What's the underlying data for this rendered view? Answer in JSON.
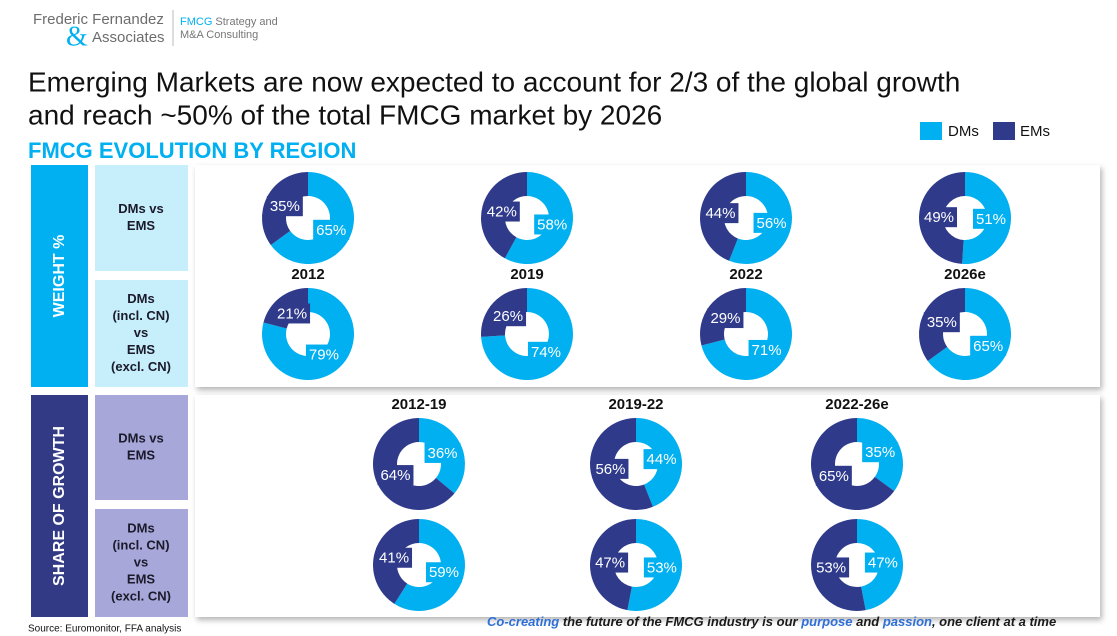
{
  "logo": {
    "name_line1": "Frederic Fernandez",
    "ampersand": "&",
    "name_line2": "Associates",
    "tag_brand": "FMCG",
    "tag_line1": "Strategy and",
    "tag_line2": "M&A Consulting"
  },
  "title_lines": [
    "Emerging Markets are now expected to account for 2/3 of the global growth",
    "and reach ~50% of the total FMCG market by 2026"
  ],
  "subtitle": "FMCG EVOLUTION BY REGION",
  "panels": [
    {
      "label": "WEIGHT %",
      "periods": [
        "2012",
        "2019",
        "2022",
        "2026e"
      ],
      "rows": [
        [
          "DMs vs",
          "EMS"
        ],
        [
          "DMs",
          "(incl. CN)",
          "vs",
          "EMS",
          "(excl. CN)"
        ]
      ]
    },
    {
      "label": "SHARE OF GROWTH",
      "periods": [
        "2012-19",
        "2019-22",
        "2022-26e"
      ],
      "rows": [
        [
          "DMs vs",
          "EMS"
        ],
        [
          "DMs",
          "(incl. CN)",
          "vs",
          "EMS",
          "(excl. CN)"
        ]
      ]
    }
  ],
  "chart_data": [
    {
      "type": "donut",
      "categories": [
        "DMs",
        "EMs"
      ],
      "colors": [
        "#00B0F0",
        "#2F3A8B"
      ],
      "values": [
        65,
        35
      ],
      "value_labels": [
        "65%",
        "35%"
      ]
    },
    {
      "type": "donut",
      "categories": [
        "DMs",
        "EMs"
      ],
      "colors": [
        "#00B0F0",
        "#2F3A8B"
      ],
      "values": [
        58,
        42
      ],
      "value_labels": [
        "58%",
        "42%"
      ]
    },
    {
      "type": "donut",
      "categories": [
        "DMs",
        "EMs"
      ],
      "colors": [
        "#00B0F0",
        "#2F3A8B"
      ],
      "values": [
        56,
        44
      ],
      "value_labels": [
        "56%",
        "44%"
      ]
    },
    {
      "type": "donut",
      "categories": [
        "DMs",
        "EMs"
      ],
      "colors": [
        "#00B0F0",
        "#2F3A8B"
      ],
      "values": [
        51,
        49
      ],
      "value_labels": [
        "51%",
        "49%"
      ]
    },
    {
      "type": "donut",
      "categories": [
        "DMs",
        "EMs"
      ],
      "colors": [
        "#00B0F0",
        "#2F3A8B"
      ],
      "values": [
        79,
        21
      ],
      "value_labels": [
        "79%",
        "21%"
      ]
    },
    {
      "type": "donut",
      "categories": [
        "DMs",
        "EMs"
      ],
      "colors": [
        "#00B0F0",
        "#2F3A8B"
      ],
      "values": [
        74,
        26
      ],
      "value_labels": [
        "74%",
        "26%"
      ]
    },
    {
      "type": "donut",
      "categories": [
        "DMs",
        "EMs"
      ],
      "colors": [
        "#00B0F0",
        "#2F3A8B"
      ],
      "values": [
        71,
        29
      ],
      "value_labels": [
        "71%",
        "29%"
      ]
    },
    {
      "type": "donut",
      "categories": [
        "DMs",
        "EMs"
      ],
      "colors": [
        "#00B0F0",
        "#2F3A8B"
      ],
      "values": [
        65,
        35
      ],
      "value_labels": [
        "65%",
        "35%"
      ]
    },
    {
      "type": "donut",
      "categories": [
        "DMs",
        "EMs"
      ],
      "colors": [
        "#00B0F0",
        "#2F3A8B"
      ],
      "values": [
        36,
        64
      ],
      "value_labels": [
        "36%",
        "64%"
      ]
    },
    {
      "type": "donut",
      "categories": [
        "DMs",
        "EMs"
      ],
      "colors": [
        "#00B0F0",
        "#2F3A8B"
      ],
      "values": [
        44,
        56
      ],
      "value_labels": [
        "44%",
        "56%"
      ]
    },
    {
      "type": "donut",
      "categories": [
        "DMs",
        "EMs"
      ],
      "colors": [
        "#00B0F0",
        "#2F3A8B"
      ],
      "values": [
        35,
        65
      ],
      "value_labels": [
        "35%",
        "65%"
      ]
    },
    {
      "type": "donut",
      "categories": [
        "DMs",
        "EMs"
      ],
      "colors": [
        "#00B0F0",
        "#2F3A8B"
      ],
      "values": [
        59,
        41
      ],
      "value_labels": [
        "59%",
        "41%"
      ]
    },
    {
      "type": "donut",
      "categories": [
        "DMs",
        "EMs"
      ],
      "colors": [
        "#00B0F0",
        "#2F3A8B"
      ],
      "values": [
        53,
        47
      ],
      "value_labels": [
        "53%",
        "47%"
      ]
    },
    {
      "type": "donut",
      "categories": [
        "DMs",
        "EMs"
      ],
      "colors": [
        "#00B0F0",
        "#2F3A8B"
      ],
      "values": [
        47,
        53
      ],
      "value_labels": [
        "47%",
        "53%"
      ]
    }
  ],
  "source": "Source: Euromonitor, FFA analysis",
  "tagline": [
    "Co-creating",
    " the future of the FMCG industry is our ",
    "purpose",
    " and ",
    "passion",
    ", one client at a time"
  ]
}
